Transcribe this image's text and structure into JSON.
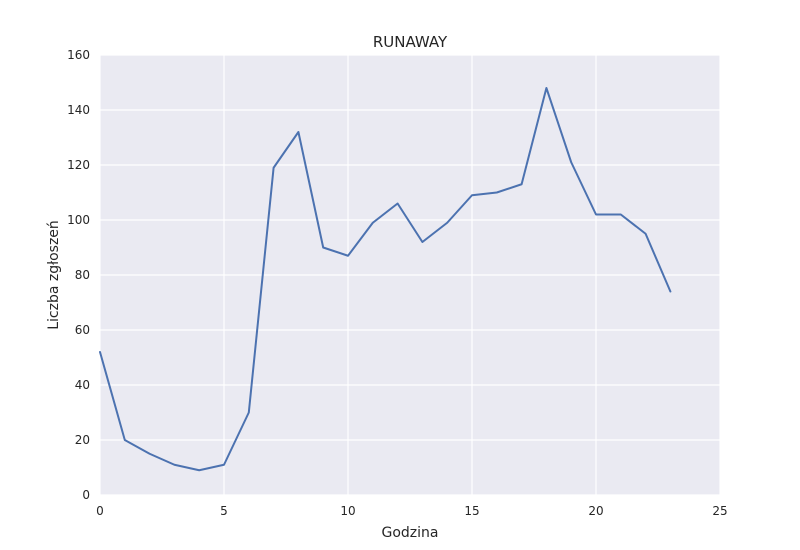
{
  "chart_data": {
    "type": "line",
    "title": "RUNAWAY",
    "xlabel": "Godzina",
    "ylabel": "Liczba zgłoszeń",
    "xlim": [
      0,
      25
    ],
    "ylim": [
      0,
      160
    ],
    "xticks": [
      0,
      5,
      10,
      15,
      20,
      25
    ],
    "yticks": [
      0,
      20,
      40,
      60,
      80,
      100,
      120,
      140,
      160
    ],
    "grid": true,
    "series": [
      {
        "x": [
          0,
          1,
          2,
          3,
          4,
          5,
          6,
          7,
          8,
          9,
          10,
          11,
          12,
          13,
          14,
          15,
          16,
          17,
          18,
          19,
          20,
          21,
          22,
          23
        ],
        "values": [
          52,
          20,
          15,
          11,
          9,
          11,
          30,
          119,
          132,
          90,
          87,
          99,
          106,
          92,
          99,
          109,
          110,
          113,
          148,
          121,
          102,
          102,
          95,
          74
        ],
        "color": "#4c72b0"
      }
    ]
  }
}
